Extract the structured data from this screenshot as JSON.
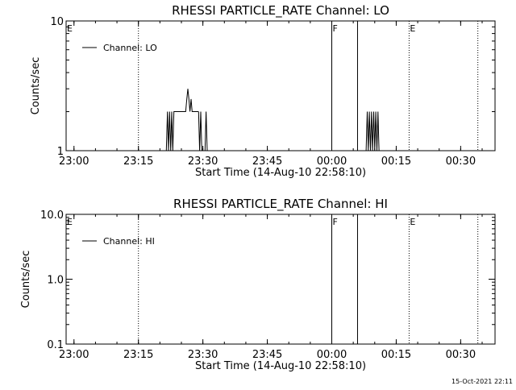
{
  "chart_data": [
    {
      "type": "line",
      "title": "RHESSI PARTICLE_RATE Channel: LO",
      "xlabel": "Start Time (14-Aug-10 22:58:10)",
      "ylabel": "Counts/sec",
      "yscale": "log",
      "ylim": [
        1,
        10
      ],
      "xlim": [
        "22:58:10",
        "00:38:00"
      ],
      "x_ticks": [
        "23:00",
        "23:15",
        "23:30",
        "23:45",
        "00:00",
        "00:15",
        "00:30"
      ],
      "y_ticks": [
        "1",
        "10"
      ],
      "legend": {
        "label": "Channel: LO",
        "position": "top-left"
      },
      "grid": false,
      "markers": [
        {
          "label": "E",
          "time": "22:58:10",
          "style": "dotted"
        },
        {
          "label": "",
          "time": "23:15",
          "style": "dotted"
        },
        {
          "label": "F",
          "time": "00:00",
          "style": "solid"
        },
        {
          "label": "",
          "time": "00:06",
          "style": "solid"
        },
        {
          "label": "E",
          "time": "00:18",
          "style": "dotted"
        },
        {
          "label": "",
          "time": "00:34",
          "style": "dotted"
        }
      ],
      "series": [
        {
          "name": "Channel: LO",
          "segments": [
            {
              "x": [
                "23:21:30",
                "23:21:45",
                "23:22:00",
                "23:22:15",
                "23:22:30",
                "23:22:45",
                "23:23:00",
                "23:23:15",
                "23:23:30",
                "23:23:45",
                "23:24:00",
                "23:24:15",
                "23:25:00",
                "23:26:00",
                "23:26:15",
                "23:26:30",
                "23:26:45",
                "23:27:00",
                "23:27:15",
                "23:27:30",
                "23:28:00",
                "23:29:00"
              ],
              "y": [
                1,
                2,
                1,
                2,
                1,
                2,
                1,
                2,
                2,
                2,
                2,
                2,
                2,
                2,
                2.5,
                3,
                2.5,
                2,
                2.5,
                2,
                2,
                2
              ]
            },
            {
              "x": [
                "23:29:00",
                "23:29:15",
                "23:29:30",
                "23:29:45",
                "23:30:00",
                "23:30:30",
                "23:30:45",
                "23:31:00"
              ],
              "y": [
                2,
                1,
                2,
                1,
                1,
                1,
                2,
                1
              ]
            },
            {
              "x": [
                "00:08:00",
                "00:08:15",
                "00:08:30",
                "00:08:45",
                "00:09:00",
                "00:09:15",
                "00:09:30",
                "00:09:45",
                "00:10:00",
                "00:10:15",
                "00:10:30",
                "00:10:45",
                "00:11:00"
              ],
              "y": [
                1,
                2,
                1,
                2,
                1,
                2,
                1,
                2,
                1,
                2,
                1,
                2,
                1
              ]
            }
          ]
        }
      ]
    },
    {
      "type": "line",
      "title": "RHESSI PARTICLE_RATE Channel: HI",
      "xlabel": "Start Time (14-Aug-10 22:58:10)",
      "ylabel": "Counts/sec",
      "yscale": "log",
      "ylim": [
        0.1,
        10
      ],
      "xlim": [
        "22:58:10",
        "00:38:00"
      ],
      "x_ticks": [
        "23:00",
        "23:15",
        "23:30",
        "23:45",
        "00:00",
        "00:15",
        "00:30"
      ],
      "y_ticks": [
        "0.1",
        "1.0",
        "10.0"
      ],
      "legend": {
        "label": "Channel: HI",
        "position": "top-left"
      },
      "grid": false,
      "markers": [
        {
          "label": "E",
          "time": "22:58:10",
          "style": "dotted"
        },
        {
          "label": "",
          "time": "23:15",
          "style": "dotted"
        },
        {
          "label": "F",
          "time": "00:00",
          "style": "solid"
        },
        {
          "label": "",
          "time": "00:06",
          "style": "solid"
        },
        {
          "label": "E",
          "time": "00:18",
          "style": "dotted"
        },
        {
          "label": "",
          "time": "00:34",
          "style": "dotted"
        }
      ],
      "series": [
        {
          "name": "Channel: HI",
          "segments": []
        }
      ]
    }
  ],
  "timestamp": "15-Oct-2021 22:11"
}
